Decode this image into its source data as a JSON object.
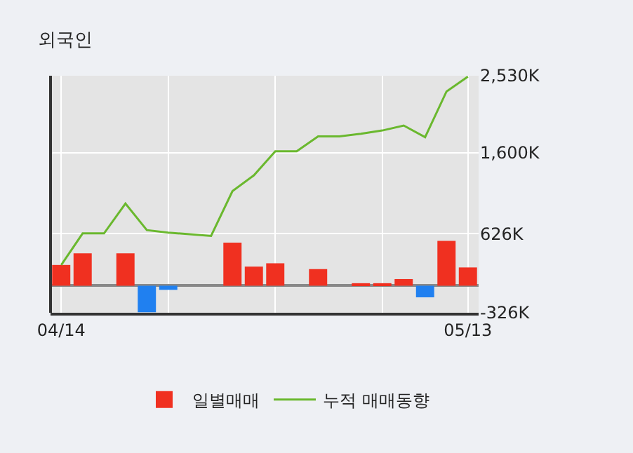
{
  "chart_data": {
    "type": "bar",
    "title": "외국인",
    "categories": [
      "04/14",
      null,
      null,
      null,
      null,
      null,
      null,
      null,
      null,
      null,
      null,
      null,
      null,
      null,
      null,
      null,
      null,
      null,
      null,
      "05/13"
    ],
    "series": [
      {
        "name": "일별매매",
        "colors": [
          "#f03020",
          "#f03020",
          "#f03020",
          "#f03020",
          "#2080f0",
          "#2080f0",
          "#f03020",
          "#f03020",
          "#f03020",
          "#f03020",
          "#f03020",
          "#f03020",
          "#f03020",
          "#f03020",
          "#f03020",
          "#f03020",
          "#f03020",
          "#2080f0",
          "#f03020",
          "#f03020"
        ],
        "values": [
          250,
          390,
          null,
          390,
          -320,
          -50,
          null,
          null,
          520,
          230,
          270,
          null,
          200,
          null,
          30,
          30,
          80,
          -140,
          540,
          220
        ]
      },
      {
        "name": "누적 매매동향",
        "type": "line",
        "color": "#6ab82e",
        "values": [
          250,
          630,
          630,
          990,
          670,
          640,
          620,
          600,
          1140,
          1330,
          1620,
          1620,
          1800,
          1800,
          1830,
          1870,
          1930,
          1790,
          2340,
          2520
        ]
      }
    ],
    "ylim": [
      -326,
      2530
    ],
    "yticks": [
      {
        "value": -326,
        "label": "-326K"
      },
      {
        "value": 626,
        "label": "626K"
      },
      {
        "value": 1600,
        "label": "1,600K"
      },
      {
        "value": 2530,
        "label": "2,530K"
      }
    ],
    "grid": true,
    "legend": "bottom",
    "marker": "none"
  }
}
